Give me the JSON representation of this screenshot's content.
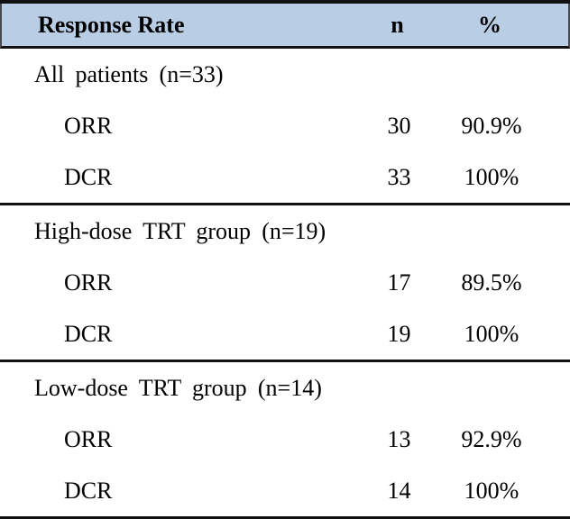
{
  "table": {
    "columns": [
      "Response Rate",
      "n",
      "%"
    ],
    "sections": [
      {
        "group": "All patients (n=33)",
        "rows": [
          {
            "label": "ORR",
            "n": "30",
            "pct": "90.9%"
          },
          {
            "label": "DCR",
            "n": "33",
            "pct": "100%"
          }
        ]
      },
      {
        "group": "High-dose TRT group (n=19)",
        "rows": [
          {
            "label": "ORR",
            "n": "17",
            "pct": "89.5%"
          },
          {
            "label": "DCR",
            "n": "19",
            "pct": "100%"
          }
        ]
      },
      {
        "group": "Low-dose TRT group (n=14)",
        "rows": [
          {
            "label": "ORR",
            "n": "13",
            "pct": "92.9%"
          },
          {
            "label": "DCR",
            "n": "14",
            "pct": "100%"
          }
        ]
      }
    ],
    "colors": {
      "header_bg": "#b9cde5",
      "rule": "#111111",
      "text": "#000000"
    }
  }
}
